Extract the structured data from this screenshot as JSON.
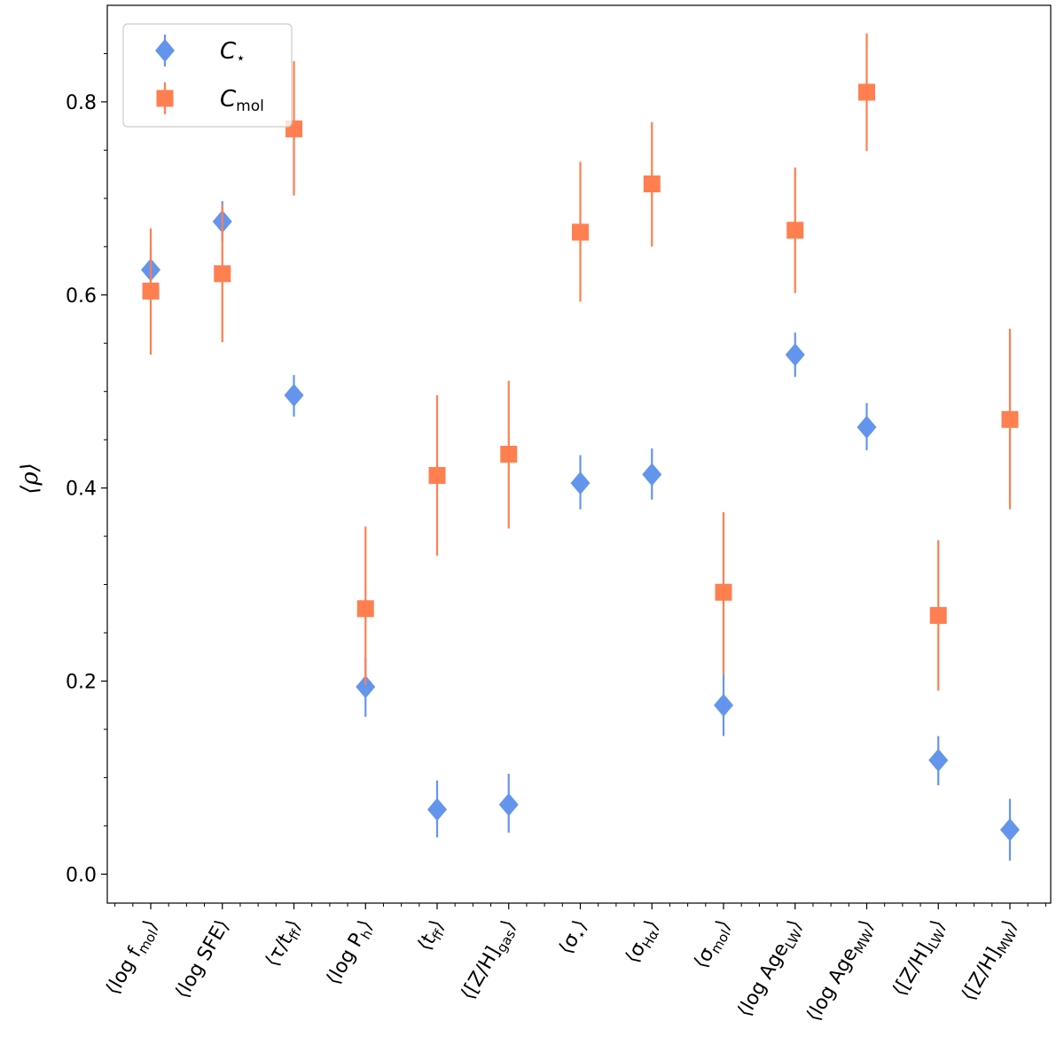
{
  "chart_data": {
    "type": "scatter",
    "ylabel": "⟨ρ⟩",
    "ylim": [
      -0.03,
      0.9
    ],
    "yticks": [
      0.0,
      0.2,
      0.4,
      0.6,
      0.8
    ],
    "ytick_labels": [
      "0.0",
      "0.2",
      "0.4",
      "0.6",
      "0.8"
    ],
    "categories": [
      "⟨log f_mol⟩",
      "⟨log SFE⟩",
      "⟨τ/t_ff⟩",
      "⟨log P_h⟩",
      "⟨t_ff⟩",
      "⟨[Z/H]_gas⟩",
      "⟨σ_⋆⟩",
      "⟨σ_Hα⟩",
      "⟨σ_mol⟩",
      "⟨log Age_LW⟩",
      "⟨log Age_MW⟩",
      "⟨[Z/H]_LW⟩",
      "⟨[Z/H]_MW⟩"
    ],
    "category_display": [
      {
        "base": "⟨log f",
        "sub": "mol",
        "tail": "⟩"
      },
      {
        "base": "⟨log SFE⟩",
        "sub": "",
        "tail": ""
      },
      {
        "base": "⟨τ/t",
        "sub": "ff",
        "tail": "⟩"
      },
      {
        "base": "⟨log P",
        "sub": "h",
        "tail": "⟩"
      },
      {
        "base": "⟨t",
        "sub": "ff",
        "tail": "⟩"
      },
      {
        "base": "⟨[Z/H]",
        "sub": "gas",
        "tail": "⟩"
      },
      {
        "base": "⟨σ",
        "sub": "⋆",
        "tail": "⟩"
      },
      {
        "base": "⟨σ",
        "sub": "Hα",
        "tail": "⟩"
      },
      {
        "base": "⟨σ",
        "sub": "mol",
        "tail": "⟩"
      },
      {
        "base": "⟨log Age",
        "sub": "LW",
        "tail": "⟩"
      },
      {
        "base": "⟨log Age",
        "sub": "MW",
        "tail": "⟩"
      },
      {
        "base": "⟨[Z/H]",
        "sub": "LW",
        "tail": "⟩"
      },
      {
        "base": "⟨[Z/H]",
        "sub": "MW",
        "tail": "⟩"
      }
    ],
    "series": [
      {
        "name": "C⋆",
        "legend_base": "C",
        "legend_sub": "⋆",
        "color": "#6495ED",
        "marker": "diamond",
        "values": [
          0.626,
          0.676,
          0.496,
          0.194,
          0.067,
          0.072,
          0.405,
          0.414,
          0.175,
          0.538,
          0.463,
          0.118,
          0.046
        ],
        "err_low": [
          0.605,
          0.655,
          0.474,
          0.163,
          0.038,
          0.043,
          0.378,
          0.388,
          0.143,
          0.515,
          0.439,
          0.092,
          0.014
        ],
        "err_high": [
          0.648,
          0.697,
          0.517,
          0.224,
          0.097,
          0.104,
          0.434,
          0.441,
          0.208,
          0.561,
          0.488,
          0.143,
          0.078
        ]
      },
      {
        "name": "Cmol",
        "legend_base": "C",
        "legend_sub": "mol",
        "color": "#FF7F50",
        "marker": "square",
        "values": [
          0.604,
          0.622,
          0.772,
          0.275,
          0.413,
          0.435,
          0.665,
          0.715,
          0.292,
          0.667,
          0.81,
          0.268,
          0.471
        ],
        "err_low": [
          0.538,
          0.551,
          0.703,
          0.196,
          0.33,
          0.358,
          0.593,
          0.65,
          0.207,
          0.602,
          0.749,
          0.19,
          0.378
        ],
        "err_high": [
          0.669,
          0.693,
          0.842,
          0.36,
          0.496,
          0.511,
          0.738,
          0.779,
          0.375,
          0.732,
          0.871,
          0.346,
          0.565
        ]
      }
    ],
    "legend_position": "upper-left",
    "grid": false
  }
}
